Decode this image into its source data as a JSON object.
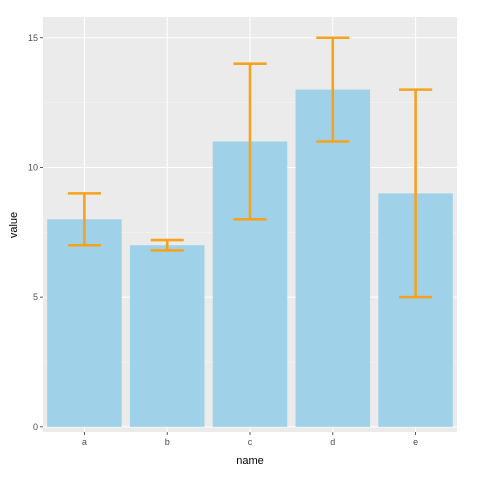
{
  "chart_data": {
    "type": "bar",
    "xlabel": "name",
    "ylabel": "value",
    "categories": [
      "a",
      "b",
      "c",
      "d",
      "e"
    ],
    "values": [
      8,
      7,
      11,
      13,
      9
    ],
    "error_low": [
      7,
      6.8,
      8,
      11,
      5
    ],
    "error_high": [
      9,
      7.2,
      14,
      15,
      13
    ],
    "ylim": [
      -0.2,
      15.8
    ],
    "yticks": [
      0,
      5,
      10,
      15
    ],
    "grid": true,
    "legend": "none",
    "colors": {
      "bar": "#9fd2e8",
      "error_bar": "#f5a31e",
      "panel_background": "#ebebeb",
      "grid": "#ffffff"
    }
  }
}
